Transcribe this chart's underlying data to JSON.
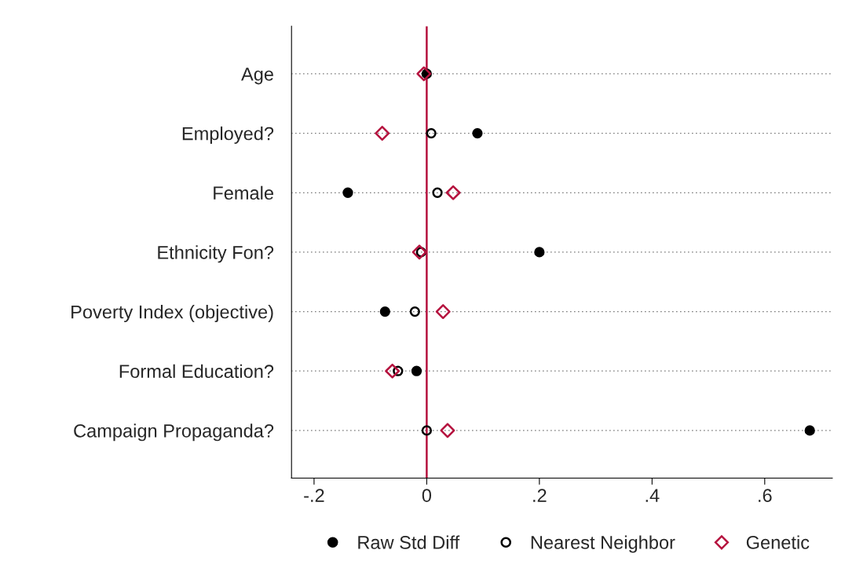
{
  "chart_data": {
    "type": "scatter",
    "categories": [
      "Age",
      "Employed?",
      "Female",
      "Ethnicity Fon?",
      "Poverty Index (objective)",
      "Formal Education?",
      "Campaign Propaganda?"
    ],
    "series": [
      {
        "name": "Raw Std Diff",
        "color": "#000000",
        "marker": "circle",
        "values": [
          0.0,
          0.09,
          -0.14,
          0.2,
          -0.074,
          -0.018,
          0.68
        ]
      },
      {
        "name": "Nearest Neighbor",
        "color": "#000000",
        "marker": "circle",
        "values": [
          null,
          0.008,
          0.019,
          -0.01,
          -0.021,
          -0.051,
          0.0
        ]
      },
      {
        "name": "Genetic",
        "color": "#b5123e",
        "marker": "diamond",
        "values": [
          -0.005,
          -0.079,
          0.047,
          -0.013,
          0.029,
          -0.061,
          0.037
        ]
      }
    ],
    "xlim": [
      -0.24,
      0.72
    ],
    "xticks": [
      {
        "value": -0.2,
        "label": "-.2"
      },
      0,
      {
        "value": 0.2,
        "label": ".2"
      },
      {
        "value": 0.4,
        "label": ".4"
      },
      {
        "value": 0.6,
        "label": ".6"
      }
    ],
    "ref_lines": [
      {
        "axis": "x",
        "value": 0,
        "color": "#b5123e",
        "line_style": "solid"
      }
    ],
    "orientation": "horizontal",
    "grid": "y",
    "legend": "bottom"
  }
}
